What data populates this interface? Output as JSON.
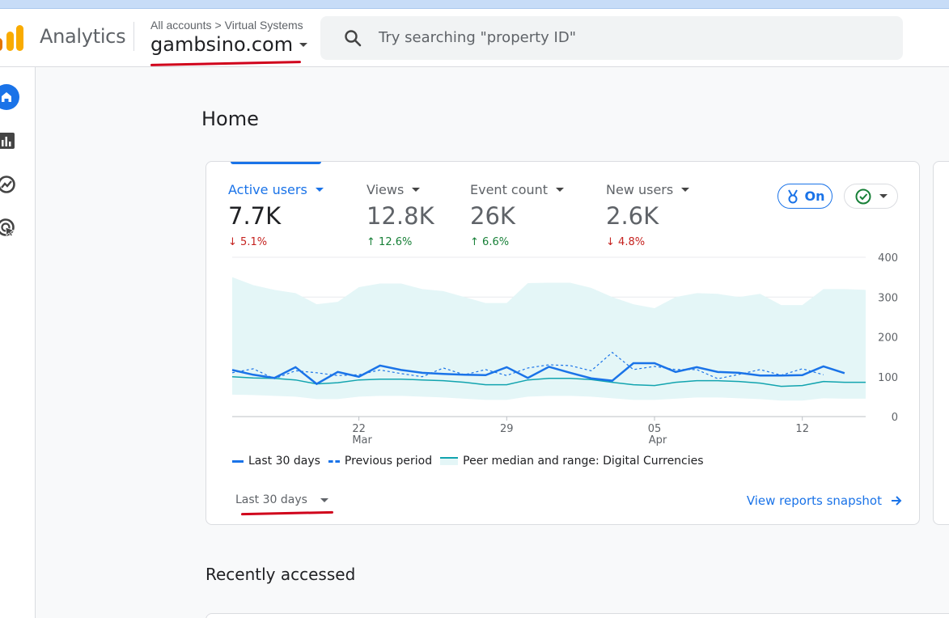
{
  "header": {
    "app_name": "Analytics",
    "breadcrumb": {
      "account": "All accounts",
      "separator": ">",
      "property_group": "Virtual Systems"
    },
    "property_name": "gambsino.com",
    "search_placeholder": "Try searching \"property ID\""
  },
  "nav": {
    "items": [
      {
        "name": "home",
        "icon": "home-icon",
        "active": true
      },
      {
        "name": "reports",
        "icon": "bar-chart-icon",
        "active": false
      },
      {
        "name": "explore",
        "icon": "explore-icon",
        "active": false
      },
      {
        "name": "advertising",
        "icon": "cursor-icon",
        "active": false
      }
    ]
  },
  "page": {
    "title": "Home",
    "recently_accessed": "Recently accessed"
  },
  "card": {
    "metrics": [
      {
        "label": "Active users",
        "value": "7.7K",
        "change": "5.1%",
        "direction": "down",
        "active": true
      },
      {
        "label": "Views",
        "value": "12.8K",
        "change": "12.6%",
        "direction": "up",
        "active": false
      },
      {
        "label": "Event count",
        "value": "26K",
        "change": "6.6%",
        "direction": "up",
        "active": false
      },
      {
        "label": "New users",
        "value": "2.6K",
        "change": "4.8%",
        "direction": "down",
        "active": false
      }
    ],
    "on_label": "On",
    "range_label": "Last 30 days",
    "snapshot_label": "View reports snapshot"
  },
  "chart_data": {
    "type": "line",
    "x_ticks": [
      {
        "day": "22",
        "month": "Mar",
        "index": 6
      },
      {
        "day": "29",
        "month": "",
        "index": 13
      },
      {
        "day": "05",
        "month": "Apr",
        "index": 20
      },
      {
        "day": "12",
        "month": "",
        "index": 27
      }
    ],
    "y_ticks": [
      0,
      100,
      200,
      300,
      400
    ],
    "ylim": [
      0,
      400
    ],
    "x_count": 31,
    "series": [
      {
        "name": "Last 30 days",
        "style": "solid",
        "color": "#1a73e8",
        "values": [
          117,
          105,
          97,
          124,
          82,
          112,
          100,
          128,
          117,
          110,
          107,
          105,
          104,
          124,
          97,
          125,
          110,
          96,
          90,
          134,
          134,
          112,
          124,
          112,
          110,
          103,
          103,
          104,
          126,
          109,
          null
        ]
      },
      {
        "name": "Previous period",
        "style": "dashed",
        "color": "#1a73e8",
        "values": [
          110,
          120,
          95,
          115,
          110,
          103,
          105,
          117,
          108,
          100,
          122,
          105,
          118,
          103,
          122,
          130,
          128,
          115,
          161,
          118,
          126,
          118,
          118,
          95,
          106,
          118,
          104,
          120,
          105,
          null,
          null
        ]
      },
      {
        "name": "Peer median and range: Digital Currencies",
        "style": "band",
        "color": "#12a4af",
        "median": [
          100,
          97,
          96,
          92,
          82,
          85,
          92,
          94,
          94,
          92,
          90,
          86,
          80,
          80,
          92,
          96,
          96,
          93,
          86,
          80,
          78,
          86,
          90,
          90,
          88,
          84,
          76,
          78,
          88,
          86,
          86
        ],
        "upper": [
          350,
          330,
          318,
          310,
          282,
          288,
          325,
          334,
          334,
          320,
          315,
          300,
          285,
          285,
          335,
          336,
          336,
          323,
          300,
          282,
          272,
          300,
          310,
          308,
          300,
          308,
          280,
          280,
          320,
          320,
          318
        ],
        "lower": [
          55,
          54,
          52,
          50,
          44,
          44,
          50,
          52,
          52,
          50,
          48,
          45,
          42,
          42,
          50,
          52,
          52,
          50,
          46,
          42,
          42,
          45,
          48,
          48,
          46,
          44,
          40,
          40,
          46,
          45,
          45
        ]
      }
    ],
    "colors": {
      "accent": "#1a73e8",
      "peer": "#12a4af",
      "band": "#e4f6f7",
      "down": "#c5221f",
      "up": "#188038"
    }
  }
}
